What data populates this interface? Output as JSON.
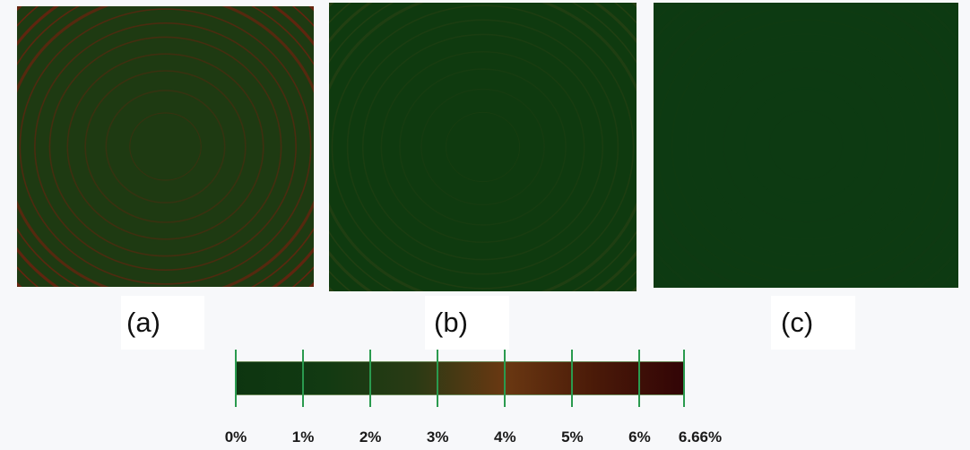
{
  "panels": [
    {
      "id": "a",
      "caption": "(a)",
      "intensity": 1.0,
      "base_color": "#1e3a12",
      "ring_color": "#7a1e0e"
    },
    {
      "id": "b",
      "caption": "(b)",
      "intensity": 0.45,
      "base_color": "#0f3a0f",
      "ring_color": "#4a4a1a"
    },
    {
      "id": "c",
      "caption": "(c)",
      "intensity": 0.12,
      "base_color": "#0d3a12",
      "ring_color": "#2e3e16"
    }
  ],
  "colorbar": {
    "stops": [
      "#0d3510",
      "#123a12",
      "#2a3a14",
      "#6a3812",
      "#4a1a08",
      "#320406"
    ],
    "min": 0,
    "max": 6.66,
    "ticks": [
      {
        "value": 0,
        "label": "0%"
      },
      {
        "value": 1,
        "label": "1%"
      },
      {
        "value": 2,
        "label": "2%"
      },
      {
        "value": 3,
        "label": "3%"
      },
      {
        "value": 4,
        "label": "4%"
      },
      {
        "value": 5,
        "label": "5%"
      },
      {
        "value": 6,
        "label": "6%"
      },
      {
        "value": 6.66,
        "label": "6.66%"
      }
    ]
  }
}
